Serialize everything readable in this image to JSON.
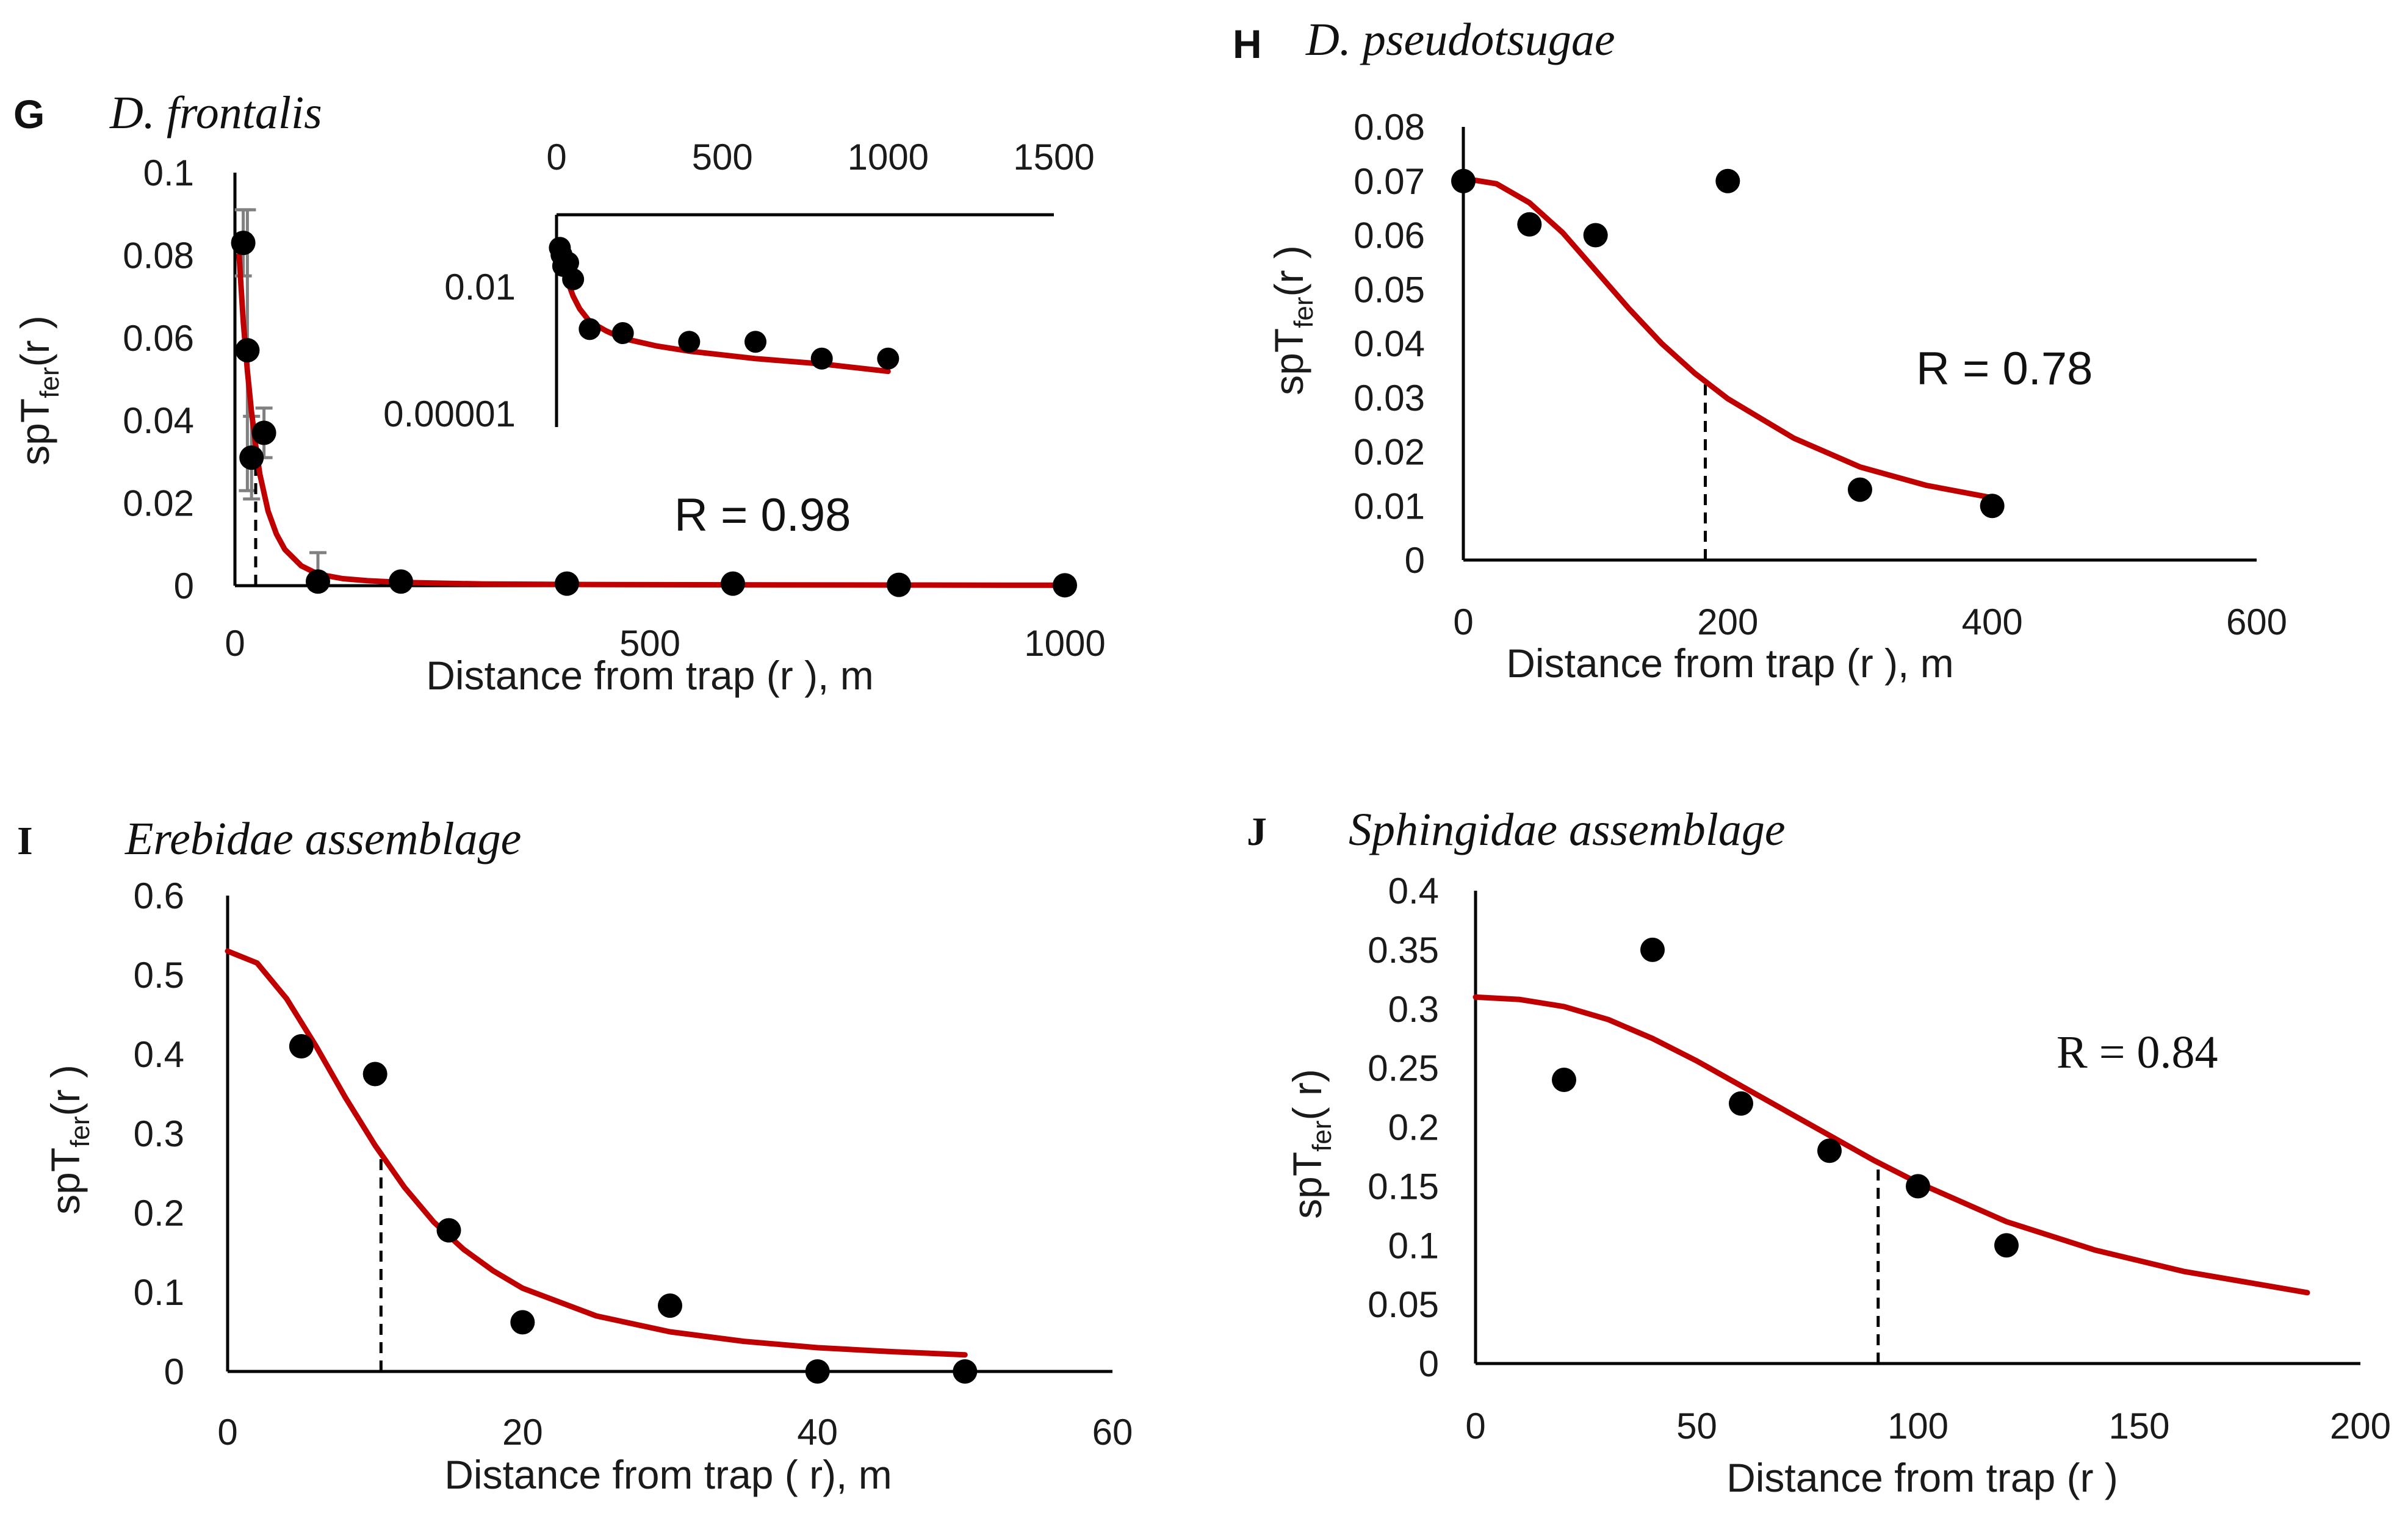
{
  "colors": {
    "fit_line": "#c00000",
    "points": "#000000",
    "error_bars": "#808080",
    "axes": "#000000"
  },
  "chart_data": [
    {
      "id": "G",
      "type": "scatter",
      "panel_letter": "G",
      "title": "D. frontalis",
      "xlabel": "Distance from trap (r ), m",
      "ylabel": "spT",
      "ylabel_sub": "fer",
      "ylabel_tail": "(r )",
      "xlim": [
        0,
        1000
      ],
      "ylim": [
        0,
        0.1
      ],
      "xticks": [
        "0",
        "500",
        "1000"
      ],
      "yticks": [
        "0",
        "0.02",
        "0.04",
        "0.06",
        "0.08",
        "0.1"
      ],
      "r_label": "R = 0.98",
      "r_value": 0.98,
      "points": [
        {
          "x": 10,
          "y": 0.083,
          "err": 0.008
        },
        {
          "x": 15,
          "y": 0.057,
          "err": 0.034
        },
        {
          "x": 20,
          "y": 0.031,
          "err": 0.01
        },
        {
          "x": 35,
          "y": 0.037,
          "err": 0.006
        },
        {
          "x": 100,
          "y": 0.001,
          "err": 0.007
        },
        {
          "x": 200,
          "y": 0.001
        },
        {
          "x": 400,
          "y": 0.0005
        },
        {
          "x": 600,
          "y": 0.0005
        },
        {
          "x": 800,
          "y": 0.0002
        },
        {
          "x": 1000,
          "y": 0.0001
        }
      ],
      "fit": {
        "x": [
          5,
          10,
          15,
          20,
          25,
          30,
          40,
          50,
          60,
          80,
          100,
          130,
          160,
          200,
          300,
          400,
          600,
          800,
          1000
        ],
        "y": [
          0.08,
          0.064,
          0.052,
          0.042,
          0.034,
          0.027,
          0.018,
          0.0125,
          0.0088,
          0.0048,
          0.0028,
          0.0017,
          0.0012,
          0.0008,
          0.0004,
          0.0003,
          0.0002,
          0.00015,
          0.0001
        ]
      },
      "dashed_x": 25,
      "inset": {
        "type": "scatter",
        "log_y": true,
        "xlim": [
          0,
          1500
        ],
        "xticks": [
          "0",
          "500",
          "1000",
          "1500"
        ],
        "yticks": [
          "0.00001",
          "0.01"
        ],
        "points": [
          {
            "x": 10,
            "y": 0.083
          },
          {
            "x": 15,
            "y": 0.057
          },
          {
            "x": 20,
            "y": 0.031
          },
          {
            "x": 35,
            "y": 0.037
          },
          {
            "x": 50,
            "y": 0.015
          },
          {
            "x": 100,
            "y": 0.001
          },
          {
            "x": 200,
            "y": 0.0008
          },
          {
            "x": 400,
            "y": 0.0005
          },
          {
            "x": 600,
            "y": 0.0005
          },
          {
            "x": 800,
            "y": 0.0002
          },
          {
            "x": 1000,
            "y": 0.0002
          }
        ],
        "fit": {
          "x": [
            10,
            20,
            30,
            50,
            70,
            100,
            150,
            200,
            300,
            400,
            600,
            800,
            1000
          ],
          "y": [
            0.06,
            0.03,
            0.016,
            0.006,
            0.003,
            0.0015,
            0.0009,
            0.0006,
            0.0004,
            0.0003,
            0.0002,
            0.00015,
            0.0001
          ]
        }
      }
    },
    {
      "id": "H",
      "type": "scatter",
      "panel_letter": "H",
      "title": "D. pseudotsugae",
      "xlabel": "Distance from trap (r ), m",
      "ylabel": "spT",
      "ylabel_sub": "fer",
      "ylabel_tail": "(r )",
      "xlim": [
        0,
        600
      ],
      "ylim": [
        0,
        0.08
      ],
      "xticks": [
        "0",
        "200",
        "400",
        "600"
      ],
      "yticks": [
        "0",
        "0.01",
        "0.02",
        "0.03",
        "0.04",
        "0.05",
        "0.06",
        "0.07",
        "0.08"
      ],
      "r_label": "R = 0.78",
      "r_value": 0.78,
      "points": [
        {
          "x": 0,
          "y": 0.07
        },
        {
          "x": 50,
          "y": 0.062
        },
        {
          "x": 100,
          "y": 0.06
        },
        {
          "x": 200,
          "y": 0.07
        },
        {
          "x": 300,
          "y": 0.013
        },
        {
          "x": 400,
          "y": 0.01
        }
      ],
      "fit": {
        "x": [
          0,
          25,
          50,
          75,
          100,
          125,
          150,
          175,
          200,
          250,
          300,
          350,
          400
        ],
        "y": [
          0.0705,
          0.0695,
          0.066,
          0.0605,
          0.0535,
          0.0465,
          0.04,
          0.0345,
          0.0298,
          0.0225,
          0.0172,
          0.0138,
          0.0115
        ]
      },
      "dashed_x": 183
    },
    {
      "id": "I",
      "type": "scatter",
      "panel_letter": "I",
      "title": "Erebidae assemblage",
      "xlabel": "Distance from trap ( r), m",
      "ylabel": "spT",
      "ylabel_sub": "fer",
      "ylabel_tail": "(r )",
      "xlim": [
        0,
        60
      ],
      "ylim": [
        0,
        0.6
      ],
      "xticks": [
        "0",
        "20",
        "40",
        "60"
      ],
      "yticks": [
        "0",
        "0.1",
        "0.2",
        "0.3",
        "0.4",
        "0.5",
        "0.6"
      ],
      "r_label": "",
      "points": [
        {
          "x": 5,
          "y": 0.41
        },
        {
          "x": 10,
          "y": 0.375
        },
        {
          "x": 15,
          "y": 0.178
        },
        {
          "x": 20,
          "y": 0.062
        },
        {
          "x": 30,
          "y": 0.083
        },
        {
          "x": 40,
          "y": 0.0
        },
        {
          "x": 50,
          "y": 0.0
        }
      ],
      "fit": {
        "x": [
          0,
          2,
          4,
          6,
          8,
          10,
          12,
          14,
          16,
          18,
          20,
          25,
          30,
          35,
          40,
          45,
          50
        ],
        "y": [
          0.53,
          0.515,
          0.47,
          0.41,
          0.345,
          0.285,
          0.232,
          0.188,
          0.154,
          0.127,
          0.105,
          0.07,
          0.05,
          0.038,
          0.03,
          0.025,
          0.021
        ]
      },
      "dashed_x": 10.4
    },
    {
      "id": "J",
      "type": "scatter",
      "panel_letter": "J",
      "title": "Sphingidae assemblage",
      "xlabel": "Distance from trap (r )",
      "ylabel": "spT",
      "ylabel_sub": "fer",
      "ylabel_tail": "( r)",
      "xlim": [
        0,
        200
      ],
      "ylim": [
        0,
        0.4
      ],
      "xticks": [
        "0",
        "50",
        "100",
        "150",
        "200"
      ],
      "yticks": [
        "0",
        "0.05",
        "0.1",
        "0.15",
        "0.2",
        "0.25",
        "0.3",
        "0.35",
        "0.4"
      ],
      "r_label": "R = 0.84",
      "r_value": 0.84,
      "points": [
        {
          "x": 20,
          "y": 0.24
        },
        {
          "x": 40,
          "y": 0.35
        },
        {
          "x": 60,
          "y": 0.22
        },
        {
          "x": 80,
          "y": 0.18
        },
        {
          "x": 100,
          "y": 0.15
        },
        {
          "x": 120,
          "y": 0.1
        }
      ],
      "fit": {
        "x": [
          0,
          10,
          20,
          30,
          40,
          50,
          60,
          70,
          80,
          90,
          100,
          120,
          140,
          160,
          188
        ],
        "y": [
          0.31,
          0.308,
          0.302,
          0.291,
          0.275,
          0.256,
          0.235,
          0.214,
          0.193,
          0.172,
          0.153,
          0.12,
          0.096,
          0.078,
          0.06
        ]
      },
      "dashed_x": 91
    }
  ]
}
